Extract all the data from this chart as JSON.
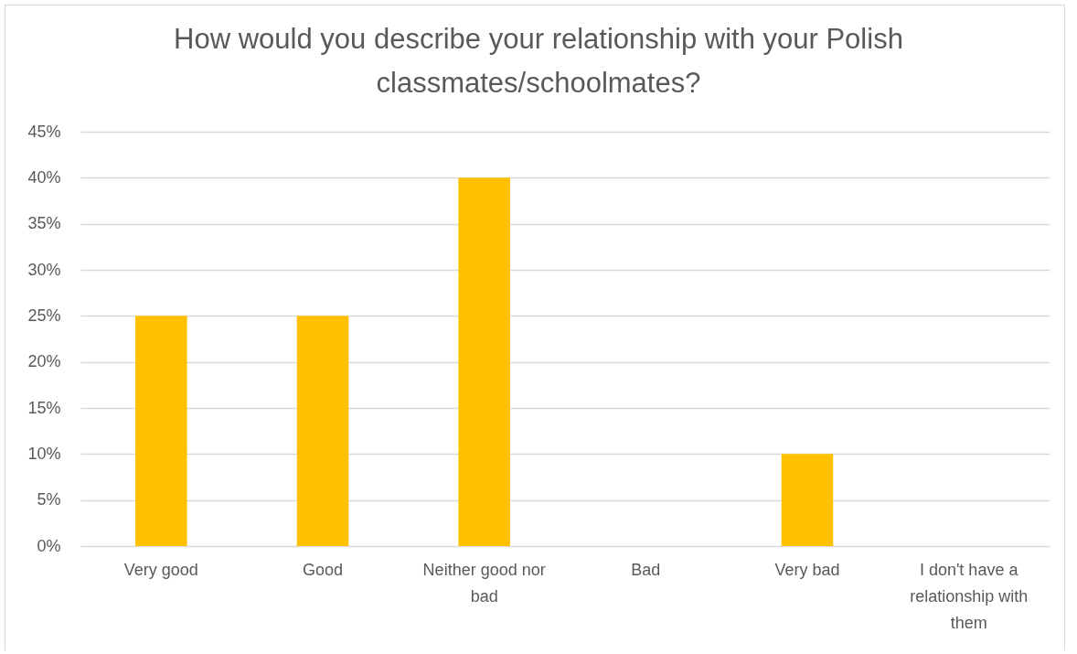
{
  "chart_data": {
    "type": "bar",
    "title": "How would you describe your relationship with your Polish classmates/schoolmates?",
    "categories": [
      "Very good",
      "Good",
      "Neither good nor bad",
      "Bad",
      "Very bad",
      "I don't have a relationship with them"
    ],
    "values": [
      25,
      25,
      40,
      0,
      10,
      0
    ],
    "color": "#ffc000",
    "ylim": [
      0,
      45
    ],
    "yticks": [
      {
        "value": 0,
        "label": "0%"
      },
      {
        "value": 5,
        "label": "5%"
      },
      {
        "value": 10,
        "label": "10%"
      },
      {
        "value": 15,
        "label": "15%"
      },
      {
        "value": 20,
        "label": "20%"
      },
      {
        "value": 25,
        "label": "25%"
      },
      {
        "value": 30,
        "label": "30%"
      },
      {
        "value": 35,
        "label": "35%"
      },
      {
        "value": 40,
        "label": "40%"
      },
      {
        "value": 45,
        "label": "45%"
      }
    ],
    "grid": "y"
  }
}
